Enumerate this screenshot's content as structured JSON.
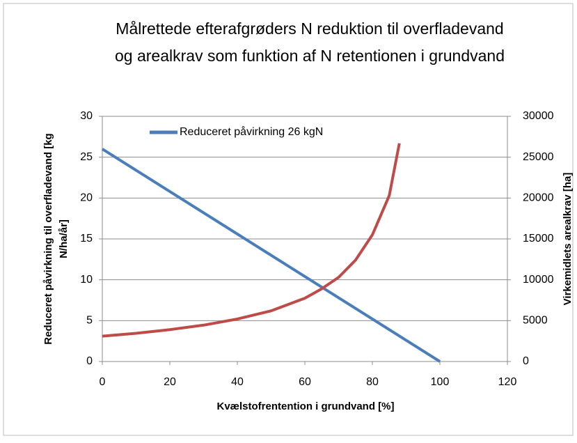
{
  "chart_data": {
    "type": "line",
    "title": [
      "Målrettede efterafgrøders  N reduktion til overfladevand",
      "og arealkrav som funktion af N retentionen i grundvand"
    ],
    "xlabel": "Kvælstofrentention i grundvand [%]",
    "ylabel": [
      "Reduceret påvirkning til overfladevand [kg",
      "N/ha/år]"
    ],
    "y2label": "Virkemidlets arealkrav [ha]",
    "xlim": [
      0,
      120
    ],
    "xticks": [
      0,
      20,
      40,
      60,
      80,
      100,
      120
    ],
    "ylim": [
      0,
      30
    ],
    "yticks": [
      0,
      5,
      10,
      15,
      20,
      25,
      30
    ],
    "y2lim": [
      0,
      30000
    ],
    "y2ticks": [
      0,
      5000,
      10000,
      15000,
      20000,
      25000,
      30000
    ],
    "grid": true,
    "legend": "top-left",
    "series": [
      {
        "name": "Reduceret påvirkning 26 kgN",
        "color": "#4a7ebb",
        "x": [
          0,
          100
        ],
        "values": [
          26,
          0
        ]
      },
      {
        "color": "#be4b48",
        "axis": "y2",
        "x": [
          0,
          10,
          20,
          30,
          40,
          50,
          60,
          65,
          70,
          75,
          80,
          85,
          88
        ],
        "values": [
          3100,
          3450,
          3900,
          4450,
          5200,
          6200,
          7750,
          8900,
          10300,
          12400,
          15500,
          20300,
          26700
        ]
      }
    ]
  }
}
